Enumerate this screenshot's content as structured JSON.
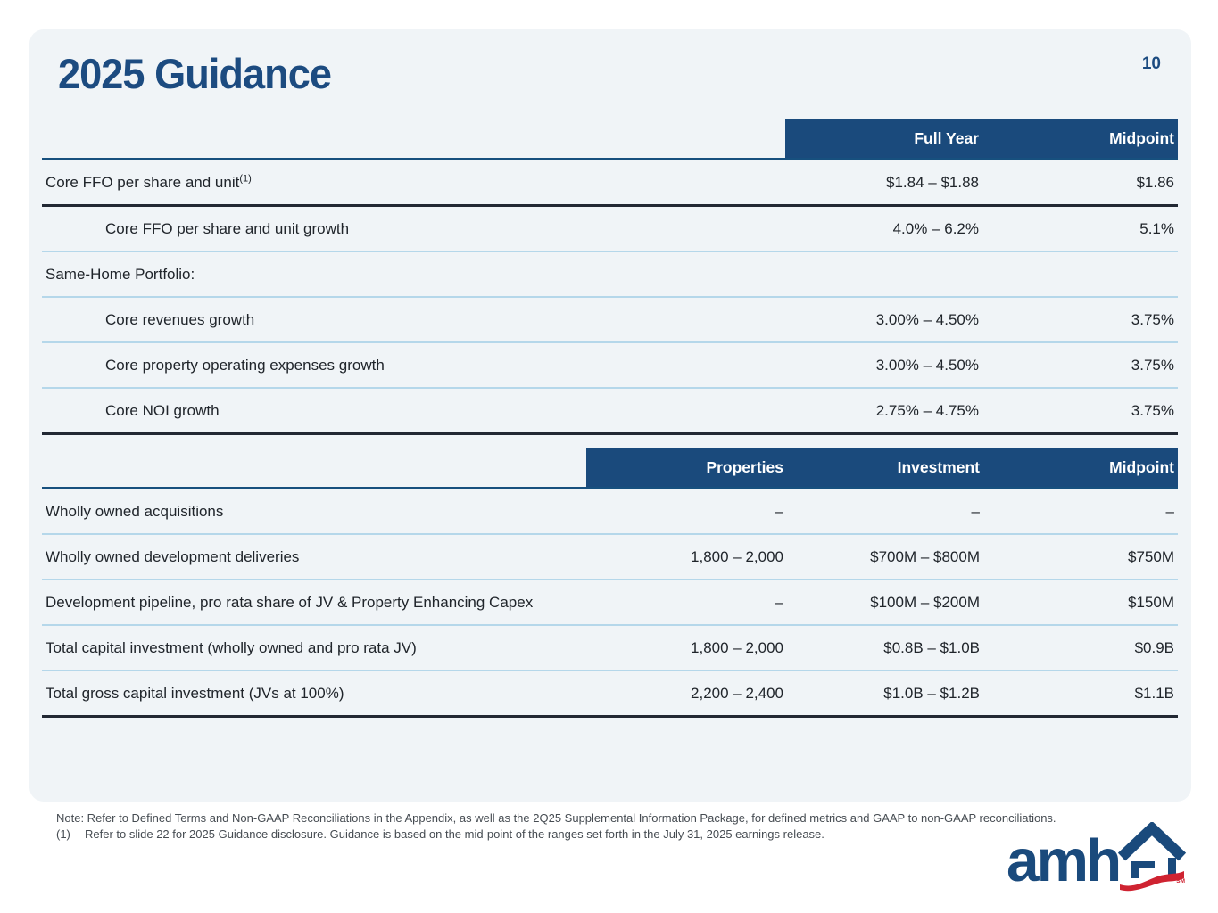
{
  "title": "2025 Guidance",
  "page_number": "10",
  "colors": {
    "navy": "#1a4a7c",
    "card_bg": "#f0f4f7",
    "light_divider": "#b5d7ea",
    "dark_divider": "#222833",
    "logo_red": "#cf2331"
  },
  "table1": {
    "headers": [
      "Full Year",
      "Midpoint"
    ],
    "rows": [
      {
        "label": "Core FFO per share and unit",
        "sup": "(1)",
        "indent": false,
        "full_year": "$1.84 – $1.88",
        "midpoint": "$1.86",
        "divider": "dark"
      },
      {
        "label": "Core FFO per share and unit growth",
        "indent": true,
        "full_year": "4.0% – 6.2%",
        "midpoint": "5.1%",
        "divider": "light"
      },
      {
        "label": "Same-Home Portfolio:",
        "indent": false,
        "full_year": "",
        "midpoint": "",
        "divider": "light"
      },
      {
        "label": "Core revenues growth",
        "indent": true,
        "full_year": "3.00% – 4.50%",
        "midpoint": "3.75%",
        "divider": "light"
      },
      {
        "label": "Core property operating expenses growth",
        "indent": true,
        "full_year": "3.00% – 4.50%",
        "midpoint": "3.75%",
        "divider": "light"
      },
      {
        "label": "Core NOI growth",
        "indent": true,
        "full_year": "2.75% – 4.75%",
        "midpoint": "3.75%",
        "divider": "dark"
      }
    ]
  },
  "table2": {
    "headers": [
      "Properties",
      "Investment",
      "Midpoint"
    ],
    "rows": [
      {
        "label": "Wholly owned acquisitions",
        "properties": "–",
        "investment": "–",
        "midpoint": "–",
        "divider": "light"
      },
      {
        "label": "Wholly owned development deliveries",
        "properties": "1,800 – 2,000",
        "investment": "$700M – $800M",
        "midpoint": "$750M",
        "divider": "light"
      },
      {
        "label": "Development pipeline, pro rata share of JV & Property Enhancing Capex",
        "properties": "–",
        "investment": "$100M – $200M",
        "midpoint": "$150M",
        "divider": "light"
      },
      {
        "label": "Total capital investment (wholly owned and pro rata JV)",
        "properties": "1,800 – 2,000",
        "investment": "$0.8B – $1.0B",
        "midpoint": "$0.9B",
        "divider": "light"
      },
      {
        "label": "Total gross capital investment (JVs at 100%)",
        "properties": "2,200 – 2,400",
        "investment": "$1.0B – $1.2B",
        "midpoint": "$1.1B",
        "divider": "dark"
      }
    ]
  },
  "footnotes": {
    "note": "Note: Refer to Defined Terms and Non-GAAP Reconciliations in the Appendix, as well as the 2Q25 Supplemental Information Package, for defined metrics and GAAP to non-GAAP reconciliations.",
    "fn1_marker": "(1)",
    "fn1_text": "Refer to slide 22 for 2025 Guidance disclosure. Guidance is based on the mid-point of the ranges set forth in the July 31, 2025 earnings release."
  },
  "logo": {
    "wordmark": "amh",
    "service_mark": "SM"
  }
}
